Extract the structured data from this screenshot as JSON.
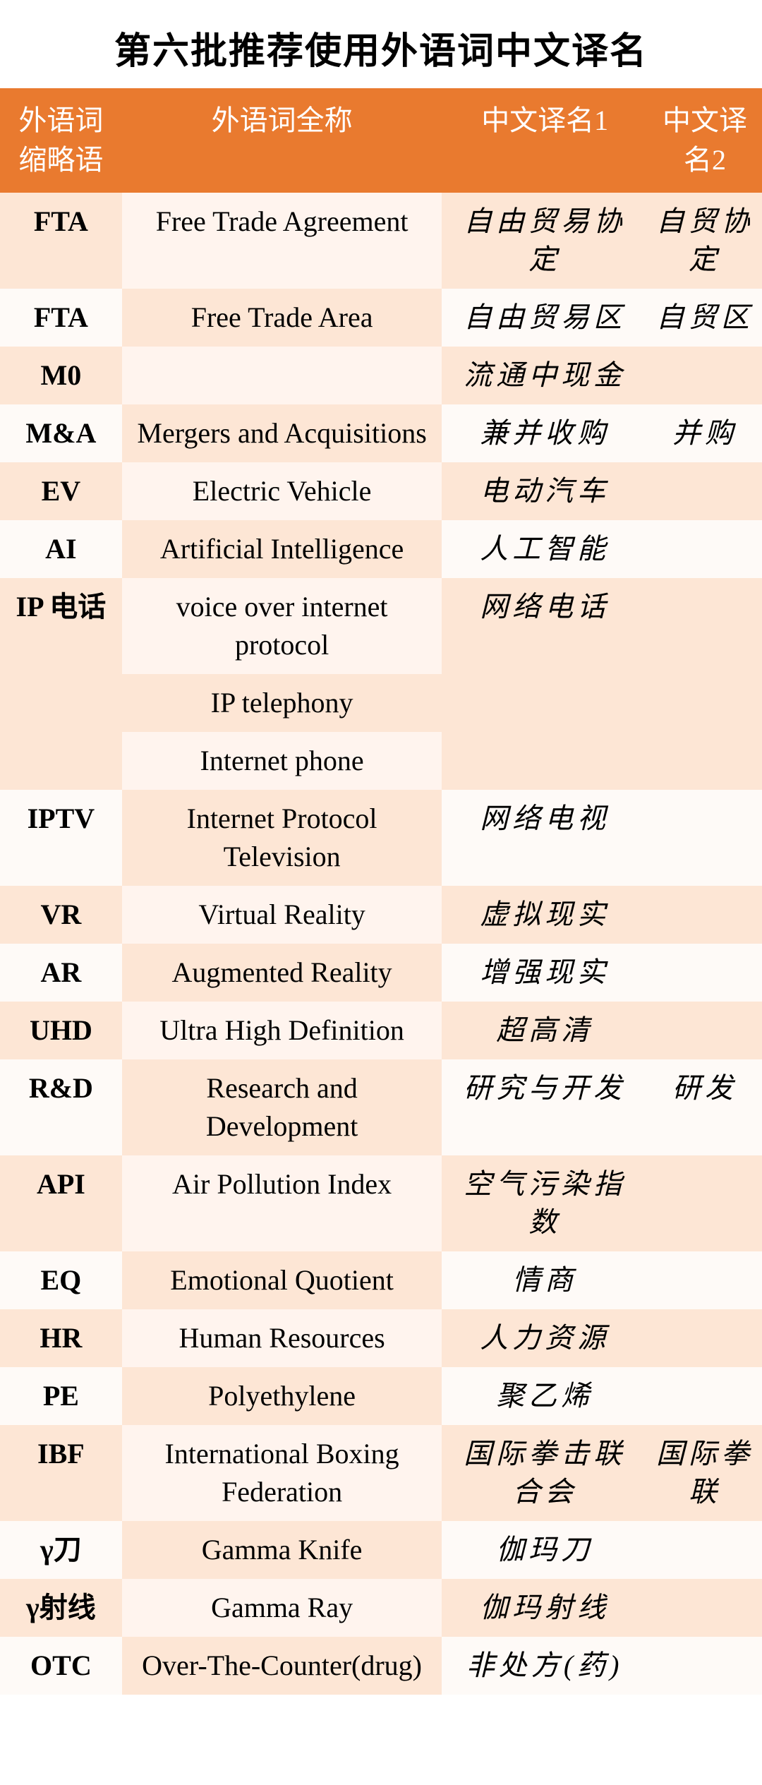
{
  "title": "第六批推荐使用外语词中文译名",
  "columns": {
    "abbr": "外语词缩略语",
    "full": "外语词全称",
    "cn1": "中文译名1",
    "cn2": "中文译名2"
  },
  "colors": {
    "header_bg": "#e97a2f",
    "header_text": "#ffffff",
    "stripe_a_main": "#fde6d5",
    "stripe_a_full": "#fff4ee",
    "stripe_b_main": "#fefaf7",
    "stripe_b_full": "#fde6d5",
    "page_bg": "#ffffff",
    "text": "#000000"
  },
  "typography": {
    "title_fontsize": 52,
    "header_fontsize": 40,
    "body_fontsize": 40,
    "abbr_weight": "bold",
    "cn_letter_spacing": 6
  },
  "layout": {
    "col_widths_pct": [
      16,
      42,
      27,
      15
    ]
  },
  "rows": [
    {
      "stripe": "a",
      "abbr": "FTA",
      "full": "Free Trade Agreement",
      "cn1": "自由贸易协定",
      "cn2": "自贸协定"
    },
    {
      "stripe": "b",
      "abbr": "FTA",
      "full": "Free Trade Area",
      "cn1": "自由贸易区",
      "cn2": "自贸区"
    },
    {
      "stripe": "a",
      "abbr": "M0",
      "full": "",
      "cn1": "流通中现金",
      "cn2": ""
    },
    {
      "stripe": "b",
      "abbr": "M&A",
      "full": "Mergers and Acquisitions",
      "cn1": "兼并收购",
      "cn2": "并购"
    },
    {
      "stripe": "a",
      "abbr": "EV",
      "full": "Electric Vehicle",
      "cn1": "电动汽车",
      "cn2": ""
    },
    {
      "stripe": "b",
      "abbr": "AI",
      "full": "Artificial Intelligence",
      "cn1": "人工智能",
      "cn2": ""
    },
    {
      "stripe": "a",
      "abbr": "IP 电话",
      "full": "voice over internet protocol",
      "cn1": "网络电话",
      "cn2": "",
      "extra_full": [
        "IP telephony",
        "Internet phone"
      ]
    },
    {
      "stripe": "b",
      "abbr": "IPTV",
      "full": "Internet Protocol Television",
      "cn1": "网络电视",
      "cn2": ""
    },
    {
      "stripe": "a",
      "abbr": "VR",
      "full": "Virtual Reality",
      "cn1": "虚拟现实",
      "cn2": ""
    },
    {
      "stripe": "b",
      "abbr": "AR",
      "full": "Augmented Reality",
      "cn1": "增强现实",
      "cn2": ""
    },
    {
      "stripe": "a",
      "abbr": "UHD",
      "full": "Ultra High Definition",
      "cn1": "超高清",
      "cn2": ""
    },
    {
      "stripe": "b",
      "abbr": "R&D",
      "full": "Research and Development",
      "cn1": "研究与开发",
      "cn2": "研发"
    },
    {
      "stripe": "a",
      "abbr": "API",
      "full": "Air Pollution Index",
      "cn1": "空气污染指数",
      "cn2": ""
    },
    {
      "stripe": "b",
      "abbr": "EQ",
      "full": "Emotional Quotient",
      "cn1": "情商",
      "cn2": ""
    },
    {
      "stripe": "a",
      "abbr": "HR",
      "full": "Human Resources",
      "cn1": "人力资源",
      "cn2": ""
    },
    {
      "stripe": "b",
      "abbr": "PE",
      "full": "Polyethylene",
      "cn1": "聚乙烯",
      "cn2": ""
    },
    {
      "stripe": "a",
      "abbr": "IBF",
      "full": "International Boxing Federation",
      "cn1": "国际拳击联合会",
      "cn2": "国际拳联"
    },
    {
      "stripe": "b",
      "abbr": "γ刀",
      "full": "Gamma Knife",
      "cn1": "伽玛刀",
      "cn2": ""
    },
    {
      "stripe": "a",
      "abbr": "γ射线",
      "full": "Gamma Ray",
      "cn1": "伽玛射线",
      "cn2": ""
    },
    {
      "stripe": "b",
      "abbr": "OTC",
      "full": "Over-The-Counter(drug)",
      "cn1": "非处方(药)",
      "cn2": ""
    }
  ]
}
